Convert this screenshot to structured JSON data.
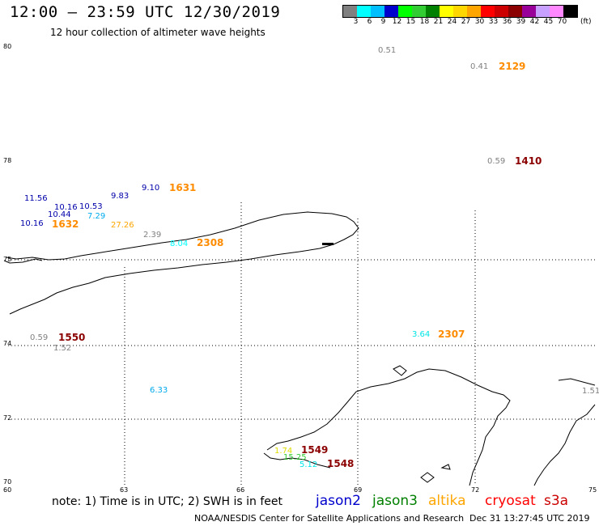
{
  "header": {
    "title": "12:00 – 23:59 UTC 12/30/2019",
    "subtitle": "12 hour collection of altimeter wave heights"
  },
  "legend": {
    "colors": [
      "#808080",
      "#00ffff",
      "#00bfff",
      "#0000cd",
      "#00ff00",
      "#32cd32",
      "#008000",
      "#ffff00",
      "#ffd700",
      "#ffa500",
      "#ff0000",
      "#cc0000",
      "#8b0000",
      "#990099",
      "#c8a0ff",
      "#ff88ff",
      "#000000"
    ],
    "labels": [
      "3",
      "6",
      "9",
      "12",
      "15",
      "18",
      "21",
      "24",
      "27",
      "30",
      "33",
      "36",
      "39",
      "42",
      "45",
      "70"
    ],
    "unit": "(ft)"
  },
  "map": {
    "lat_labels": [
      "80",
      "78",
      "75",
      "74",
      "72",
      "70"
    ],
    "lon_labels": [
      "60",
      "63",
      "66",
      "69",
      "72",
      "75"
    ],
    "wave_readings": [
      {
        "text": "0.51",
        "color": "#808080"
      },
      {
        "text": "0.41",
        "color": "#808080"
      },
      {
        "text": "0.59",
        "color": "#808080"
      },
      {
        "text": "11.56",
        "color": "#0000aa"
      },
      {
        "text": "10.16",
        "color": "#0000aa"
      },
      {
        "text": "10.53",
        "color": "#0000aa"
      },
      {
        "text": "9.83",
        "color": "#0000aa"
      },
      {
        "text": "9.10",
        "color": "#0000aa"
      },
      {
        "text": "10.44",
        "color": "#0000aa"
      },
      {
        "text": "7.29",
        "color": "#00aaee"
      },
      {
        "text": "10.16",
        "color": "#0000aa"
      },
      {
        "text": "27.26",
        "color": "#ffa500"
      },
      {
        "text": "2.39",
        "color": "#808080"
      },
      {
        "text": "8.04",
        "color": "#00ffff"
      },
      {
        "text": "0.59",
        "color": "#808080"
      },
      {
        "text": "1.52",
        "color": "#808080"
      },
      {
        "text": "3.64",
        "color": "#00e5e5"
      },
      {
        "text": "6.33",
        "color": "#00aaee"
      },
      {
        "text": "1.74",
        "color": "#dddd00"
      },
      {
        "text": "15.25",
        "color": "#32cd32"
      },
      {
        "text": "5.12",
        "color": "#00e5e5"
      },
      {
        "text": "1.51",
        "color": "#808080"
      }
    ],
    "pass_times": [
      {
        "text": "2129",
        "color": "#ff8c00"
      },
      {
        "text": "1410",
        "color": "#8b0000"
      },
      {
        "text": "1631",
        "color": "#ff8c00"
      },
      {
        "text": "1632",
        "color": "#ff8c00"
      },
      {
        "text": "2308",
        "color": "#ff8c00"
      },
      {
        "text": "1550",
        "color": "#8b0000"
      },
      {
        "text": "2307",
        "color": "#ff8c00"
      },
      {
        "text": "1549",
        "color": "#8b0000"
      },
      {
        "text": "1548",
        "color": "#8b0000"
      }
    ]
  },
  "footer": {
    "note": "note: 1) Time is in UTC; 2) SWH is in feet",
    "satellites": [
      {
        "name": "jason2",
        "color": "#0000cd"
      },
      {
        "name": "jason3",
        "color": "#008000"
      },
      {
        "name": "altika",
        "color": "#ffa500"
      },
      {
        "name": "cryosat",
        "color": "#ff0000"
      },
      {
        "name": "s3a",
        "color": "#cc0000"
      }
    ],
    "credit": "NOAA/NESDIS Center for Satellite Applications and Research",
    "timestamp": "Dec 31 13:27:45 UTC 2019"
  }
}
